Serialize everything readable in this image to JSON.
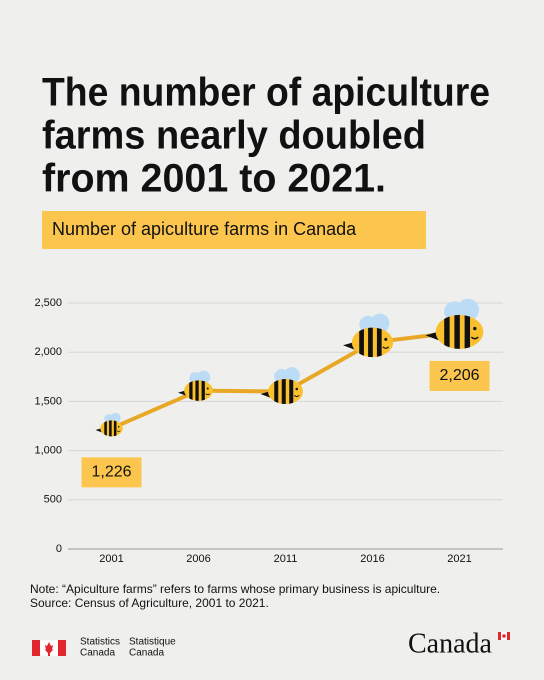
{
  "chart_data": {
    "type": "line",
    "title": [
      "The number of apiculture",
      "farms nearly doubled",
      "from 2001 to 2021."
    ],
    "subtitle": "Number of apiculture farms in Canada",
    "categories": [
      "2001",
      "2006",
      "2011",
      "2016",
      "2021"
    ],
    "series": [
      {
        "color": "#e8a825",
        "values": [
          1226,
          1610,
          1600,
          2100,
          2206
        ],
        "value_labels": [
          "1,226",
          null,
          null,
          null,
          "2,206"
        ]
      }
    ],
    "ylim": [
      0,
      2500
    ],
    "yticks": [
      0,
      500,
      {
        "value": 1000,
        "label": "1,000"
      },
      {
        "value": 1500,
        "label": "1,500"
      },
      {
        "value": 2000,
        "label": "2,000"
      },
      {
        "value": 2500,
        "label": "2,500"
      }
    ],
    "grid": true,
    "note": "Note: “Apiculture farms” refers to farms whose primary business is apiculture.",
    "source": "Source: Census of Agriculture, 2001 to 2021."
  },
  "footer": {
    "en": [
      "Statistics",
      "Canada"
    ],
    "fr": [
      "Statistique",
      "Canada"
    ],
    "wordmark": "Canada"
  }
}
